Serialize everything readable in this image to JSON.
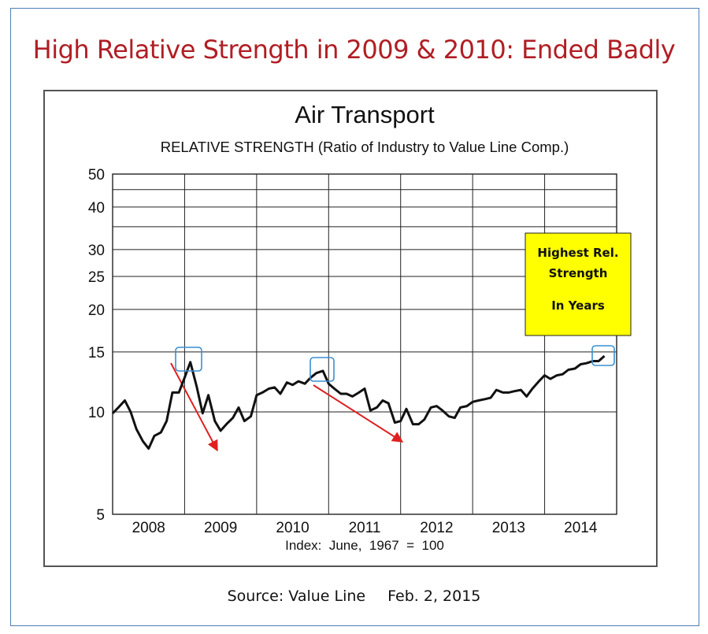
{
  "title": "High Relative Strength in 2009 & 2010: Ended Badly",
  "source": "Source: Value Line",
  "source_date": "Feb. 2, 2015",
  "colors": {
    "title": "#b01e24",
    "frame": "#4f7fb5",
    "arrow": "#e02020",
    "highlight_box": "#3a8fd0",
    "callout_bg": "#ffff00"
  },
  "callout": {
    "line1": "Highest Rel.",
    "line2": "Strength",
    "line3": "In Years"
  },
  "chart_data": {
    "type": "line",
    "title": "Air Transport",
    "subtitle": "RELATIVE STRENGTH (Ratio of Industry to Value Line Comp.)",
    "xlabel": "Index:  June,  1967  =  100",
    "y_scale": "log",
    "ylim": [
      5,
      50
    ],
    "y_ticks": [
      5,
      10,
      15,
      20,
      25,
      30,
      40,
      50
    ],
    "x_categories": [
      "2008",
      "2009",
      "2010",
      "2011",
      "2012",
      "2013",
      "2014"
    ],
    "grid": true,
    "x": [
      2008.0,
      2008.08,
      2008.17,
      2008.25,
      2008.33,
      2008.42,
      2008.5,
      2008.58,
      2008.67,
      2008.75,
      2008.83,
      2008.92,
      2009.0,
      2009.08,
      2009.17,
      2009.25,
      2009.33,
      2009.42,
      2009.5,
      2009.58,
      2009.67,
      2009.75,
      2009.83,
      2009.92,
      2010.0,
      2010.08,
      2010.17,
      2010.25,
      2010.33,
      2010.42,
      2010.5,
      2010.58,
      2010.67,
      2010.75,
      2010.83,
      2010.92,
      2011.0,
      2011.08,
      2011.17,
      2011.25,
      2011.33,
      2011.42,
      2011.5,
      2011.58,
      2011.67,
      2011.75,
      2011.83,
      2011.92,
      2012.0,
      2012.08,
      2012.17,
      2012.25,
      2012.33,
      2012.42,
      2012.5,
      2012.58,
      2012.67,
      2012.75,
      2012.83,
      2012.92,
      2013.0,
      2013.08,
      2013.17,
      2013.25,
      2013.33,
      2013.42,
      2013.5,
      2013.58,
      2013.67,
      2013.75,
      2013.83,
      2013.92,
      2014.0,
      2014.08,
      2014.17,
      2014.25,
      2014.33,
      2014.42,
      2014.5,
      2014.58,
      2014.67,
      2014.75,
      2014.83
    ],
    "y": [
      9.9,
      10.3,
      10.8,
      10.0,
      8.9,
      8.2,
      7.8,
      8.5,
      8.7,
      9.4,
      11.4,
      11.4,
      12.6,
      14.0,
      11.8,
      9.9,
      11.2,
      9.4,
      8.8,
      9.2,
      9.6,
      10.3,
      9.4,
      9.7,
      11.2,
      11.4,
      11.7,
      11.8,
      11.3,
      12.2,
      12.0,
      12.3,
      12.1,
      12.6,
      13.0,
      13.2,
      12.1,
      11.7,
      11.3,
      11.3,
      11.1,
      11.4,
      11.7,
      10.1,
      10.3,
      10.8,
      10.6,
      9.3,
      9.4,
      10.2,
      9.2,
      9.2,
      9.5,
      10.3,
      10.4,
      10.1,
      9.7,
      9.6,
      10.3,
      10.4,
      10.7,
      10.8,
      10.9,
      11.0,
      11.6,
      11.4,
      11.4,
      11.5,
      11.6,
      11.1,
      11.7,
      12.3,
      12.8,
      12.5,
      12.8,
      12.9,
      13.3,
      13.4,
      13.8,
      13.9,
      14.1,
      14.1,
      14.6
    ]
  }
}
